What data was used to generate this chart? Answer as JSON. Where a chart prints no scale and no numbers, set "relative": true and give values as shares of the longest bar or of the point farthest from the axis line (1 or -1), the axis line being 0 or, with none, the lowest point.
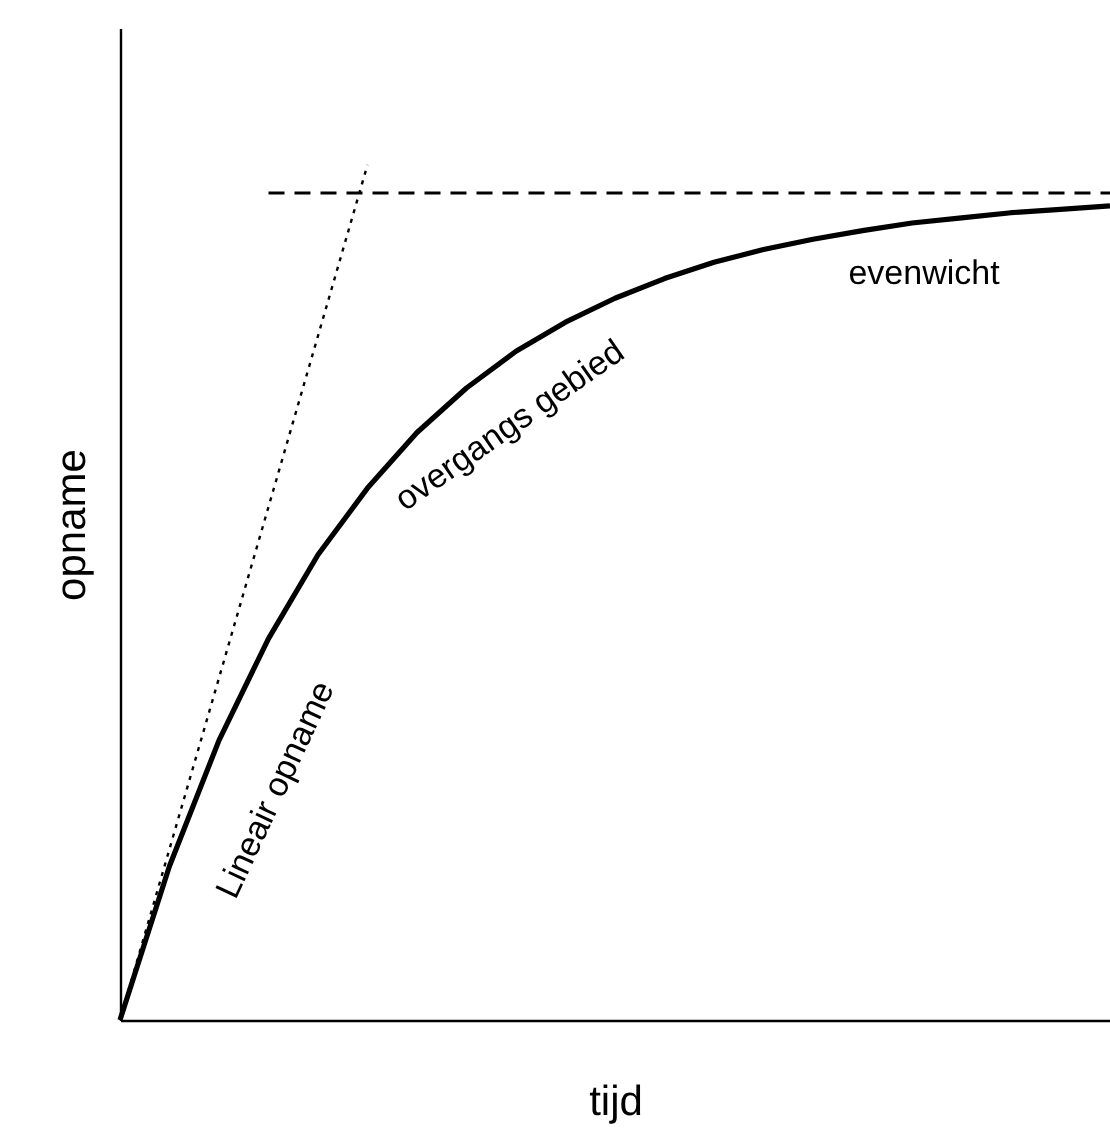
{
  "chart_data": {
    "type": "line",
    "relative": true,
    "xlabel": "tijd",
    "ylabel": "opname",
    "grid": false,
    "categories": [
      null,
      null,
      null,
      null,
      null,
      null,
      null,
      null,
      null,
      null,
      null,
      null,
      null,
      null,
      null,
      null,
      null,
      null,
      null,
      null,
      null
    ],
    "series": [
      {
        "color": "#000000",
        "line_style": "solid",
        "values": [
          0,
          0.18,
          0.327,
          0.446,
          0.544,
          0.622,
          0.687,
          0.739,
          0.782,
          0.816,
          0.844,
          0.867,
          0.886,
          0.901,
          0.913,
          0.923,
          0.932,
          0.938,
          0.944,
          0.948,
          0.952
        ]
      },
      {
        "color": "#000000",
        "line_style": "dotted",
        "values": [
          0,
          0.2,
          0.4,
          0.6,
          0.8,
          1.0,
          null,
          null,
          null,
          null,
          null,
          null,
          null,
          null,
          null,
          null,
          null,
          null,
          null,
          null,
          null
        ]
      },
      {
        "color": "#000000",
        "line_style": "dashed",
        "values": [
          null,
          null,
          null,
          0.967,
          0.967,
          0.967,
          0.967,
          0.967,
          0.967,
          0.967,
          0.967,
          0.967,
          0.967,
          0.967,
          0.967,
          0.967,
          0.967,
          0.967,
          0.967,
          0.967,
          0.967
        ]
      }
    ],
    "annotations": [
      "Lineair opname",
      "overgangs gebied",
      "evenwicht"
    ]
  }
}
